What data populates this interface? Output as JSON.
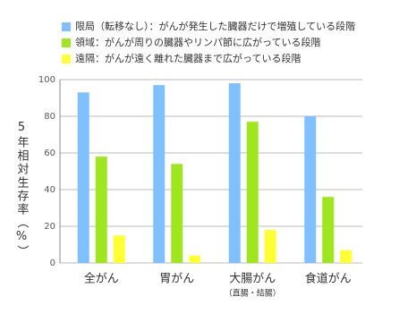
{
  "chart_data": {
    "type": "bar",
    "y_label": "5年相対生存率（%）",
    "categories": [
      "全がん",
      "胃がん",
      "大腸がん",
      "食道がん"
    ],
    "category_sublabels": [
      null,
      null,
      "（直腸・結腸）",
      null
    ],
    "series": [
      {
        "name": "限局（転移なし）：がんが発生した臓器だけで増殖している段階",
        "color": "#80c0ff",
        "values": [
          93,
          97,
          98,
          80
        ]
      },
      {
        "name": "領域：がんが周りの臓器やリンパ節に広がっている段階",
        "color": "#a0e620",
        "values": [
          58,
          54,
          77,
          36
        ]
      },
      {
        "name": "遠隔：がんが遠く離れた臓器まで広がっている段階",
        "color": "#ffff33",
        "values": [
          15,
          4,
          18,
          7
        ]
      }
    ],
    "ylim": [
      0,
      100
    ],
    "yticks": [
      0,
      20,
      40,
      60,
      80,
      100
    ],
    "grid": true,
    "legend": "top"
  }
}
